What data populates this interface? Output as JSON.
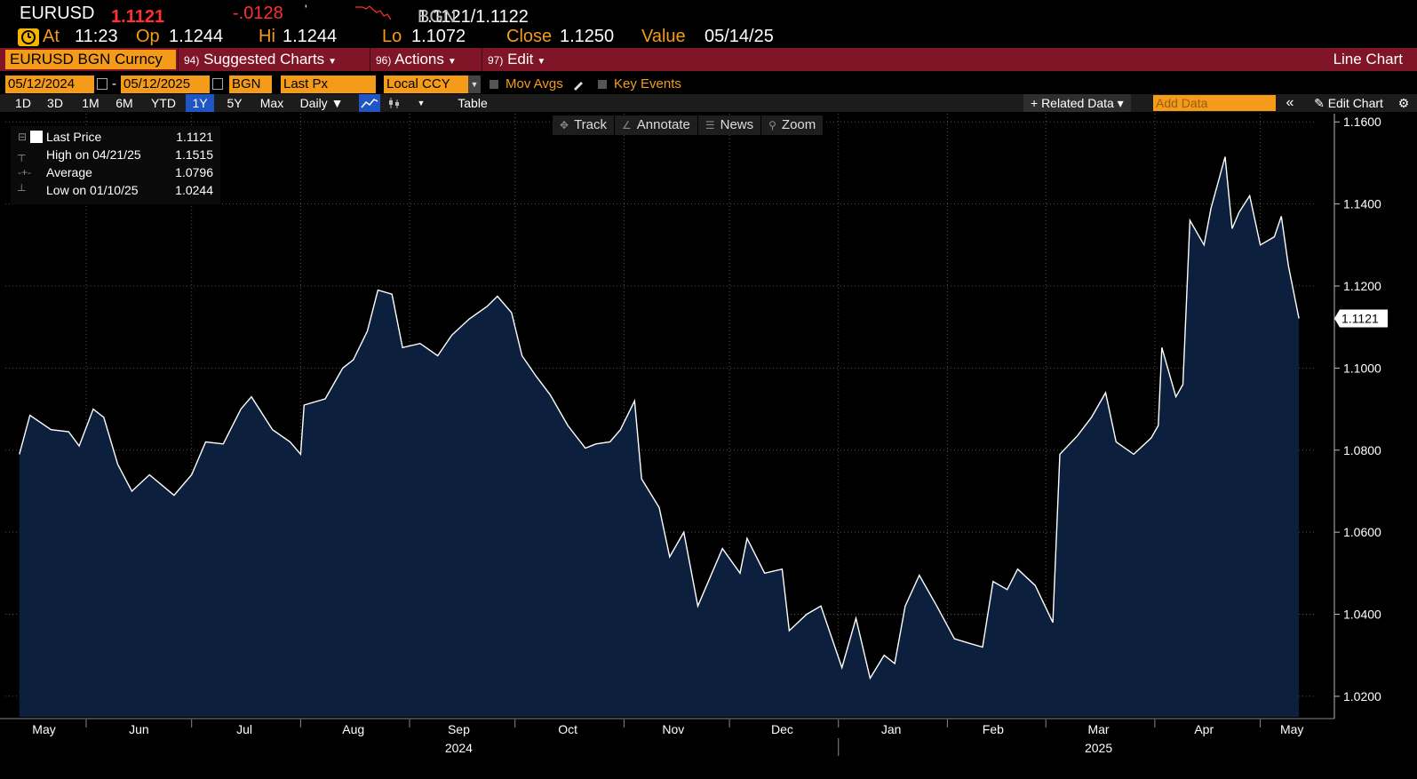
{
  "header": {
    "ticker": "EURUSD",
    "arrow": "↓",
    "last": "1.1121",
    "change": "-.0128",
    "tick_mark": "'",
    "bid_source": "BGN",
    "bid_ask": "1.1121/1.1122",
    "ask_source": "BGN",
    "at_label": "At",
    "at_value": "11:23",
    "op_label": "Op",
    "op_value": "1.1244",
    "hi_label": "Hi",
    "hi_value": "1.1244",
    "lo_label": "Lo",
    "lo_value": "1.1072",
    "close_label": "Close",
    "close_value": "1.1250",
    "value_label": "Value",
    "value_date": "05/14/25",
    "price_color": "#ff3030",
    "clock_icon": "clock-icon"
  },
  "toolbar": {
    "security": "EURUSD BGN Curncy",
    "suggested_num": "94)",
    "suggested_label": "Suggested Charts",
    "actions_num": "96)",
    "actions_label": "Actions",
    "edit_num": "97)",
    "edit_label": "Edit",
    "chart_title": "Line Chart"
  },
  "settings": {
    "start_date": "05/12/2024",
    "end_date": "05/12/2025",
    "separator": "-",
    "source": "BGN",
    "field": "Last Px",
    "currency": "Local CCY",
    "mov_avgs": "Mov Avgs",
    "key_events": "Key Events"
  },
  "periods": {
    "buttons": [
      "1D",
      "3D",
      "1M",
      "6M",
      "YTD",
      "1Y",
      "5Y",
      "Max"
    ],
    "active": "1Y",
    "frequency": "Daily ▼",
    "table": "Table",
    "related_data": "+ Related Data ▾",
    "add_data_placeholder": "Add Data",
    "collapse": "«",
    "edit_chart": "Edit Chart",
    "gear": "⚙"
  },
  "chart_tools": {
    "track": "Track",
    "annotate": "Annotate",
    "news": "News",
    "zoom": "Zoom"
  },
  "legend": {
    "last_label": "Last Price",
    "last_value": "1.1121",
    "high_label": "High on 04/21/25",
    "high_value": "1.1515",
    "avg_label": "Average",
    "avg_value": "1.0796",
    "low_label": "Low on 01/10/25",
    "low_value": "1.0244"
  },
  "chart_data": {
    "type": "area",
    "title": "",
    "series": [
      {
        "name": "Last Price",
        "color": "#ffffff",
        "fill": "#0c1f3d",
        "points": [
          [
            "2024-05-13",
            1.079
          ],
          [
            "2024-05-16",
            1.0885
          ],
          [
            "2024-05-22",
            1.085
          ],
          [
            "2024-05-27",
            1.0845
          ],
          [
            "2024-05-30",
            1.081
          ],
          [
            "2024-06-03",
            1.09
          ],
          [
            "2024-06-06",
            1.088
          ],
          [
            "2024-06-10",
            1.0765
          ],
          [
            "2024-06-14",
            1.07
          ],
          [
            "2024-06-19",
            1.074
          ],
          [
            "2024-06-26",
            1.069
          ],
          [
            "2024-07-01",
            1.074
          ],
          [
            "2024-07-05",
            1.082
          ],
          [
            "2024-07-10",
            1.0815
          ],
          [
            "2024-07-15",
            1.09
          ],
          [
            "2024-07-18",
            1.093
          ],
          [
            "2024-07-24",
            1.085
          ],
          [
            "2024-07-29",
            1.082
          ],
          [
            "2024-08-01",
            1.079
          ],
          [
            "2024-08-02",
            1.091
          ],
          [
            "2024-08-08",
            1.0925
          ],
          [
            "2024-08-13",
            1.1
          ],
          [
            "2024-08-16",
            1.102
          ],
          [
            "2024-08-20",
            1.109
          ],
          [
            "2024-08-23",
            1.119
          ],
          [
            "2024-08-27",
            1.118
          ],
          [
            "2024-08-30",
            1.105
          ],
          [
            "2024-09-04",
            1.106
          ],
          [
            "2024-09-09",
            1.103
          ],
          [
            "2024-09-13",
            1.108
          ],
          [
            "2024-09-18",
            1.112
          ],
          [
            "2024-09-23",
            1.115
          ],
          [
            "2024-09-26",
            1.1175
          ],
          [
            "2024-09-30",
            1.1135
          ],
          [
            "2024-10-03",
            1.103
          ],
          [
            "2024-10-07",
            1.098
          ],
          [
            "2024-10-11",
            1.0935
          ],
          [
            "2024-10-16",
            1.086
          ],
          [
            "2024-10-21",
            1.0805
          ],
          [
            "2024-10-24",
            1.0815
          ],
          [
            "2024-10-28",
            1.082
          ],
          [
            "2024-10-31",
            1.085
          ],
          [
            "2024-11-04",
            1.092
          ],
          [
            "2024-11-06",
            1.073
          ],
          [
            "2024-11-11",
            1.066
          ],
          [
            "2024-11-14",
            1.054
          ],
          [
            "2024-11-18",
            1.06
          ],
          [
            "2024-11-22",
            1.042
          ],
          [
            "2024-11-26",
            1.05
          ],
          [
            "2024-11-29",
            1.056
          ],
          [
            "2024-12-04",
            1.05
          ],
          [
            "2024-12-06",
            1.0585
          ],
          [
            "2024-12-11",
            1.05
          ],
          [
            "2024-12-16",
            1.051
          ],
          [
            "2024-12-18",
            1.036
          ],
          [
            "2024-12-23",
            1.04
          ],
          [
            "2024-12-27",
            1.042
          ],
          [
            "2025-01-02",
            1.027
          ],
          [
            "2025-01-06",
            1.039
          ],
          [
            "2025-01-10",
            1.0244
          ],
          [
            "2025-01-14",
            1.03
          ],
          [
            "2025-01-17",
            1.028
          ],
          [
            "2025-01-20",
            1.042
          ],
          [
            "2025-01-24",
            1.0495
          ],
          [
            "2025-01-29",
            1.042
          ],
          [
            "2025-02-03",
            1.034
          ],
          [
            "2025-02-07",
            1.033
          ],
          [
            "2025-02-11",
            1.032
          ],
          [
            "2025-02-14",
            1.048
          ],
          [
            "2025-02-18",
            1.046
          ],
          [
            "2025-02-21",
            1.051
          ],
          [
            "2025-02-26",
            1.047
          ],
          [
            "2025-03-03",
            1.038
          ],
          [
            "2025-03-05",
            1.079
          ],
          [
            "2025-03-10",
            1.0835
          ],
          [
            "2025-03-14",
            1.088
          ],
          [
            "2025-03-18",
            1.094
          ],
          [
            "2025-03-21",
            1.082
          ],
          [
            "2025-03-26",
            1.079
          ],
          [
            "2025-03-31",
            1.083
          ],
          [
            "2025-04-02",
            1.086
          ],
          [
            "2025-04-03",
            1.105
          ],
          [
            "2025-04-07",
            1.093
          ],
          [
            "2025-04-09",
            1.096
          ],
          [
            "2025-04-11",
            1.136
          ],
          [
            "2025-04-15",
            1.13
          ],
          [
            "2025-04-17",
            1.139
          ],
          [
            "2025-04-21",
            1.1515
          ],
          [
            "2025-04-23",
            1.134
          ],
          [
            "2025-04-25",
            1.138
          ],
          [
            "2025-04-28",
            1.142
          ],
          [
            "2025-05-01",
            1.13
          ],
          [
            "2025-05-05",
            1.132
          ],
          [
            "2025-05-07",
            1.137
          ],
          [
            "2025-05-09",
            1.125
          ],
          [
            "2025-05-12",
            1.1121
          ]
        ]
      }
    ],
    "y_ticks": [
      "1.1600",
      "1.1400",
      "1.1200",
      "1.1000",
      "1.0800",
      "1.0600",
      "1.0400",
      "1.0200"
    ],
    "ylim": [
      1.015,
      1.162
    ],
    "x_range": [
      "2024-05-09",
      "2025-05-14"
    ],
    "month_labels": [
      [
        "May",
        "2024-05-20"
      ],
      [
        "Jun",
        "2024-06-16"
      ],
      [
        "Jul",
        "2024-07-16"
      ],
      [
        "Aug",
        "2024-08-16"
      ],
      [
        "Sep",
        "2024-09-15"
      ],
      [
        "Oct",
        "2024-10-16"
      ],
      [
        "Nov",
        "2024-11-15"
      ],
      [
        "Dec",
        "2024-12-16"
      ],
      [
        "Jan",
        "2025-01-16"
      ],
      [
        "Feb",
        "2025-02-14"
      ],
      [
        "Mar",
        "2025-03-16"
      ],
      [
        "Apr",
        "2025-04-15"
      ],
      [
        "May",
        "2025-05-10"
      ]
    ],
    "year_labels": [
      [
        "2024",
        "2024-09-15"
      ],
      [
        "2025",
        "2025-03-16"
      ]
    ],
    "last_marker": "1.1121",
    "grid": true
  }
}
